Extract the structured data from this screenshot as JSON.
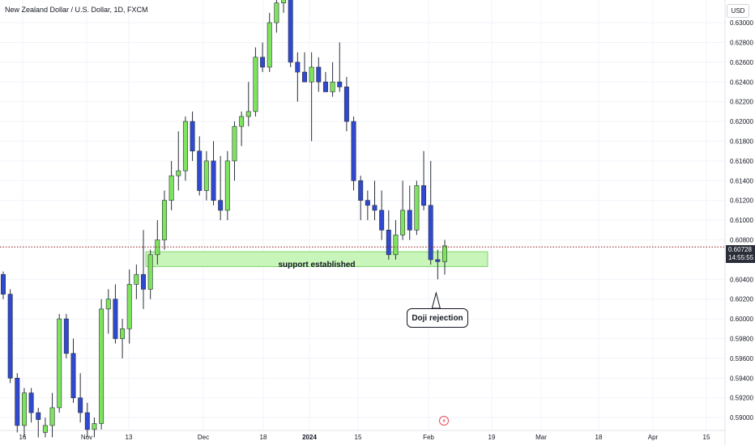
{
  "header": {
    "title": "New Zealand Dollar / U.S. Dollar, 1D, FXCM",
    "currency": "USD"
  },
  "price_axis": {
    "ticks": [
      "0.63000",
      "0.62800",
      "0.62600",
      "0.62400",
      "0.62200",
      "0.62000",
      "0.61800",
      "0.61600",
      "0.61400",
      "0.61200",
      "0.61000",
      "0.60800",
      "0.60400",
      "0.60200",
      "0.60000",
      "0.59800",
      "0.59600",
      "0.59400",
      "0.59200",
      "0.59000"
    ]
  },
  "time_axis": {
    "ticks": [
      "16",
      "Nov",
      "13",
      "Dec",
      "18",
      "2024",
      "15",
      "Feb",
      "19",
      "Mar",
      "18",
      "Apr",
      "15"
    ]
  },
  "current_price": {
    "value": "0.60728",
    "countdown": "14:55:55"
  },
  "annotations": {
    "zone_label": "support established",
    "callout": "Doji rejection"
  },
  "colors": {
    "up": "#7ee35e",
    "down": "#2f49d1",
    "zone_fill": "#c8f5b9",
    "zone_border": "#7ed66b",
    "grid": "#f0f3fa",
    "axis_text": "#131722"
  },
  "chart_data": {
    "type": "candlestick",
    "symbol": "NZDUSD",
    "timeframe": "1D",
    "ylim": [
      0.5887,
      0.6323
    ],
    "support_zone": [
      0.6053,
      0.6068
    ],
    "current_price": 0.60728,
    "candles": [
      {
        "o": 0.6045,
        "h": 0.6048,
        "l": 0.602,
        "c": 0.6025
      },
      {
        "o": 0.6025,
        "h": 0.603,
        "l": 0.5935,
        "c": 0.594
      },
      {
        "o": 0.594,
        "h": 0.5945,
        "l": 0.5885,
        "c": 0.5892
      },
      {
        "o": 0.5892,
        "h": 0.593,
        "l": 0.588,
        "c": 0.5925
      },
      {
        "o": 0.5925,
        "h": 0.593,
        "l": 0.5895,
        "c": 0.5905
      },
      {
        "o": 0.5905,
        "h": 0.591,
        "l": 0.588,
        "c": 0.5898
      },
      {
        "o": 0.5885,
        "h": 0.59,
        "l": 0.588,
        "c": 0.5892
      },
      {
        "o": 0.5892,
        "h": 0.5925,
        "l": 0.588,
        "c": 0.591
      },
      {
        "o": 0.591,
        "h": 0.6005,
        "l": 0.5905,
        "c": 0.6
      },
      {
        "o": 0.6,
        "h": 0.6005,
        "l": 0.596,
        "c": 0.5965
      },
      {
        "o": 0.5965,
        "h": 0.598,
        "l": 0.5915,
        "c": 0.592
      },
      {
        "o": 0.592,
        "h": 0.5945,
        "l": 0.5895,
        "c": 0.5905
      },
      {
        "o": 0.5905,
        "h": 0.5915,
        "l": 0.588,
        "c": 0.5888
      },
      {
        "o": 0.5888,
        "h": 0.59,
        "l": 0.588,
        "c": 0.5894
      },
      {
        "o": 0.5894,
        "h": 0.602,
        "l": 0.5888,
        "c": 0.601
      },
      {
        "o": 0.601,
        "h": 0.603,
        "l": 0.5985,
        "c": 0.602
      },
      {
        "o": 0.602,
        "h": 0.6035,
        "l": 0.5975,
        "c": 0.598
      },
      {
        "o": 0.598,
        "h": 0.6,
        "l": 0.596,
        "c": 0.599
      },
      {
        "o": 0.599,
        "h": 0.605,
        "l": 0.5975,
        "c": 0.6035
      },
      {
        "o": 0.6035,
        "h": 0.6055,
        "l": 0.602,
        "c": 0.6045
      },
      {
        "o": 0.6045,
        "h": 0.609,
        "l": 0.601,
        "c": 0.603
      },
      {
        "o": 0.603,
        "h": 0.607,
        "l": 0.602,
        "c": 0.6065
      },
      {
        "o": 0.6065,
        "h": 0.61,
        "l": 0.6055,
        "c": 0.608
      },
      {
        "o": 0.608,
        "h": 0.613,
        "l": 0.607,
        "c": 0.612
      },
      {
        "o": 0.612,
        "h": 0.616,
        "l": 0.611,
        "c": 0.6145
      },
      {
        "o": 0.6145,
        "h": 0.619,
        "l": 0.613,
        "c": 0.615
      },
      {
        "o": 0.615,
        "h": 0.6205,
        "l": 0.614,
        "c": 0.62
      },
      {
        "o": 0.62,
        "h": 0.621,
        "l": 0.616,
        "c": 0.617
      },
      {
        "o": 0.617,
        "h": 0.6185,
        "l": 0.6125,
        "c": 0.613
      },
      {
        "o": 0.613,
        "h": 0.617,
        "l": 0.612,
        "c": 0.616
      },
      {
        "o": 0.616,
        "h": 0.618,
        "l": 0.6115,
        "c": 0.612
      },
      {
        "o": 0.612,
        "h": 0.6165,
        "l": 0.61,
        "c": 0.611
      },
      {
        "o": 0.611,
        "h": 0.617,
        "l": 0.61,
        "c": 0.616
      },
      {
        "o": 0.616,
        "h": 0.62,
        "l": 0.614,
        "c": 0.6195
      },
      {
        "o": 0.6195,
        "h": 0.621,
        "l": 0.6175,
        "c": 0.6205
      },
      {
        "o": 0.6205,
        "h": 0.624,
        "l": 0.6195,
        "c": 0.621
      },
      {
        "o": 0.621,
        "h": 0.6275,
        "l": 0.6205,
        "c": 0.6265
      },
      {
        "o": 0.6265,
        "h": 0.628,
        "l": 0.625,
        "c": 0.6255
      },
      {
        "o": 0.6255,
        "h": 0.631,
        "l": 0.625,
        "c": 0.63
      },
      {
        "o": 0.63,
        "h": 0.633,
        "l": 0.629,
        "c": 0.632
      },
      {
        "o": 0.632,
        "h": 0.633,
        "l": 0.631,
        "c": 0.6325
      },
      {
        "o": 0.6325,
        "h": 0.633,
        "l": 0.6255,
        "c": 0.626
      },
      {
        "o": 0.626,
        "h": 0.627,
        "l": 0.622,
        "c": 0.625
      },
      {
        "o": 0.625,
        "h": 0.627,
        "l": 0.624,
        "c": 0.624
      },
      {
        "o": 0.624,
        "h": 0.627,
        "l": 0.618,
        "c": 0.6255
      },
      {
        "o": 0.6255,
        "h": 0.6265,
        "l": 0.623,
        "c": 0.624
      },
      {
        "o": 0.624,
        "h": 0.625,
        "l": 0.623,
        "c": 0.623
      },
      {
        "o": 0.623,
        "h": 0.626,
        "l": 0.6225,
        "c": 0.624
      },
      {
        "o": 0.624,
        "h": 0.628,
        "l": 0.623,
        "c": 0.6235
      },
      {
        "o": 0.6235,
        "h": 0.6245,
        "l": 0.619,
        "c": 0.62
      },
      {
        "o": 0.62,
        "h": 0.6205,
        "l": 0.613,
        "c": 0.614
      },
      {
        "o": 0.614,
        "h": 0.6145,
        "l": 0.61,
        "c": 0.612
      },
      {
        "o": 0.612,
        "h": 0.613,
        "l": 0.61,
        "c": 0.6115
      },
      {
        "o": 0.6115,
        "h": 0.614,
        "l": 0.61,
        "c": 0.611
      },
      {
        "o": 0.611,
        "h": 0.613,
        "l": 0.608,
        "c": 0.609
      },
      {
        "o": 0.609,
        "h": 0.611,
        "l": 0.606,
        "c": 0.6065
      },
      {
        "o": 0.6065,
        "h": 0.61,
        "l": 0.606,
        "c": 0.6085
      },
      {
        "o": 0.6085,
        "h": 0.614,
        "l": 0.608,
        "c": 0.611
      },
      {
        "o": 0.611,
        "h": 0.6135,
        "l": 0.608,
        "c": 0.609
      },
      {
        "o": 0.609,
        "h": 0.614,
        "l": 0.6085,
        "c": 0.6135
      },
      {
        "o": 0.6135,
        "h": 0.617,
        "l": 0.611,
        "c": 0.6115
      },
      {
        "o": 0.6115,
        "h": 0.616,
        "l": 0.6055,
        "c": 0.606
      },
      {
        "o": 0.606,
        "h": 0.607,
        "l": 0.604,
        "c": 0.6058
      },
      {
        "o": 0.6058,
        "h": 0.608,
        "l": 0.6045,
        "c": 0.6074
      }
    ]
  }
}
